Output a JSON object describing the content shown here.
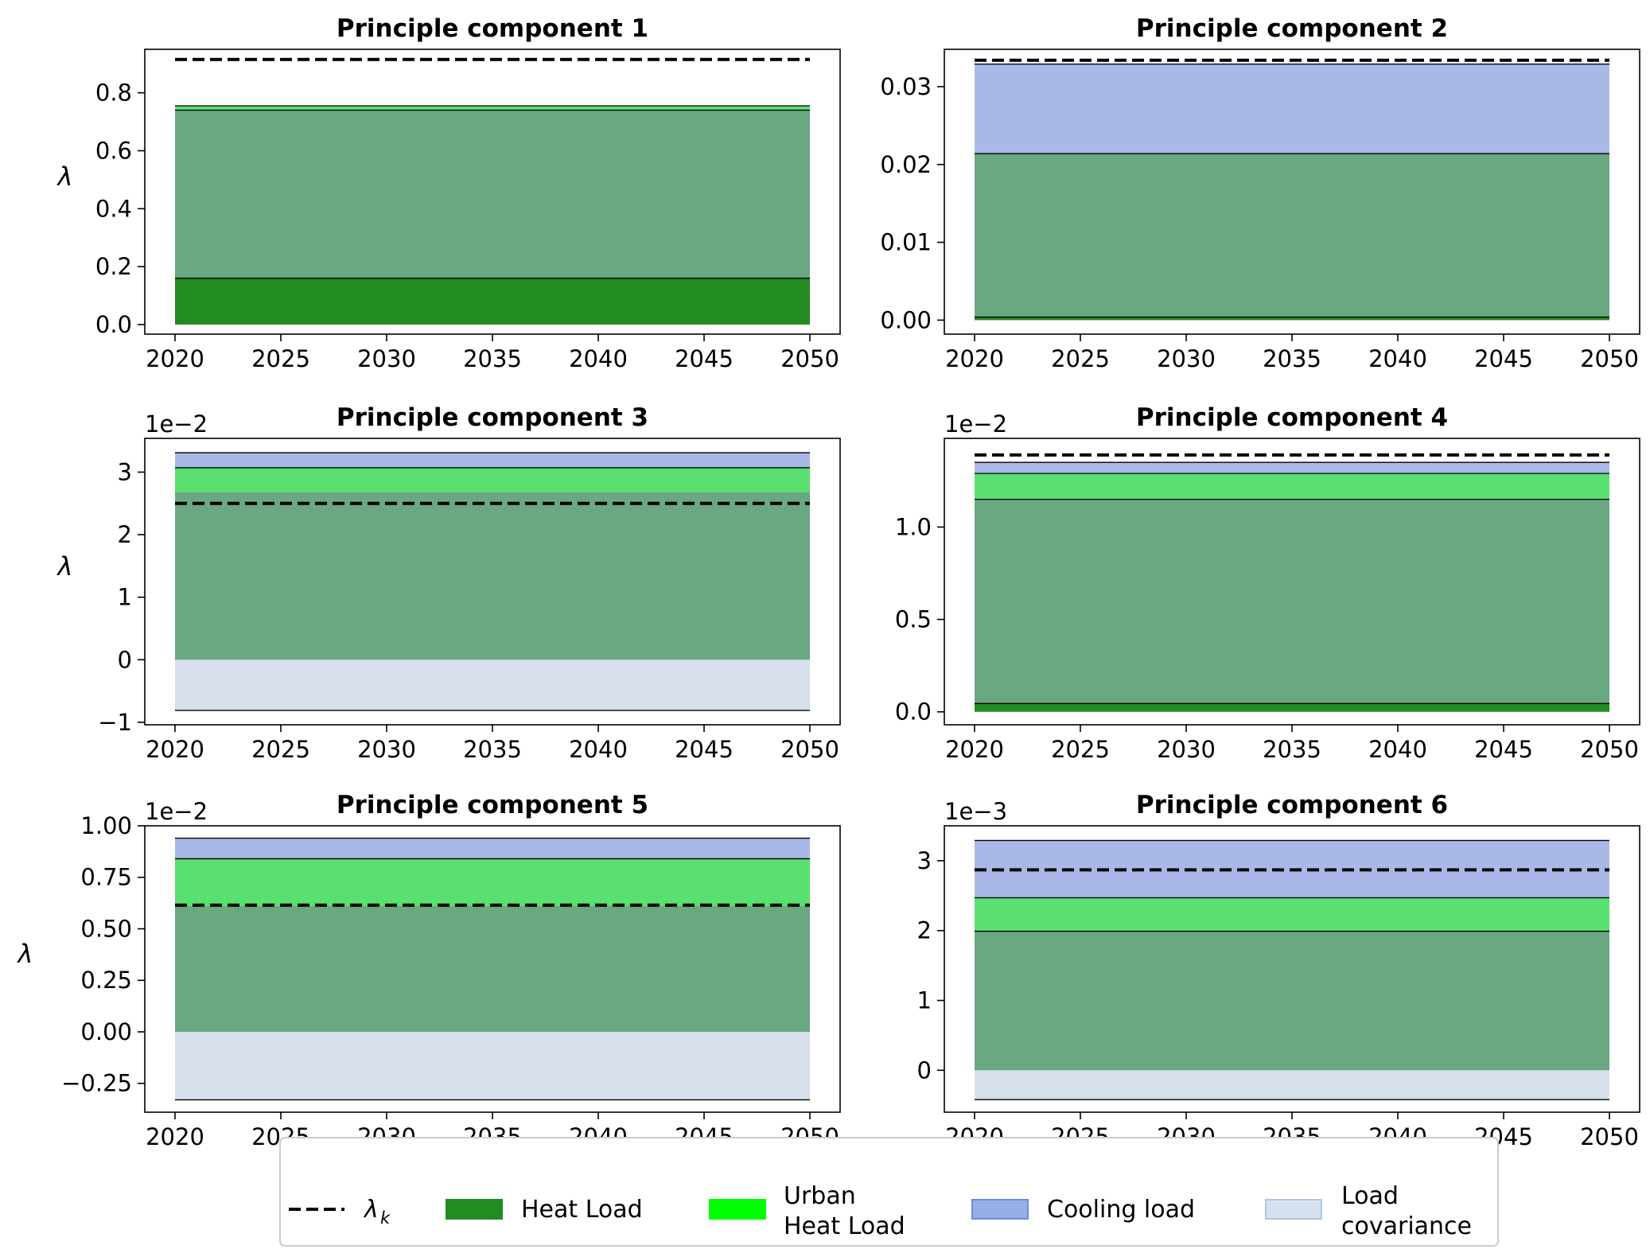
{
  "chart_data": [
    {
      "type": "area",
      "title": "Principle component 1",
      "ylabel": "λ",
      "x": [
        2020,
        2050
      ],
      "xlim": [
        2020,
        2050
      ],
      "xticks": [
        "2020",
        "2025",
        "2030",
        "2035",
        "2040",
        "2045",
        "2050"
      ],
      "ylim": [
        -0.033,
        0.95
      ],
      "yticks": [
        0.0,
        0.2,
        0.4,
        0.6,
        0.8
      ],
      "ytick_labels": [
        "0.0",
        "0.2",
        "0.4",
        "0.6",
        "0.8"
      ],
      "offset_text": "",
      "lambda_k": 0.915,
      "bands": [
        {
          "series": "Heat Load",
          "from": 0.0,
          "to": 0.16
        },
        {
          "series": "Heat Load overlap",
          "from": 0.16,
          "to": 0.74
        },
        {
          "series": "Urban Heat Load",
          "from": 0.74,
          "to": 0.755
        }
      ],
      "lines": [
        0.16,
        0.74,
        0.755
      ]
    },
    {
      "type": "area",
      "title": "Principle component 2",
      "ylabel": "",
      "x": [
        2020,
        2050
      ],
      "xlim": [
        2020,
        2050
      ],
      "xticks": [
        "2020",
        "2025",
        "2030",
        "2035",
        "2040",
        "2045",
        "2050"
      ],
      "ylim": [
        -0.0018,
        0.0348
      ],
      "yticks": [
        0.0,
        0.01,
        0.02,
        0.03
      ],
      "ytick_labels": [
        "0.00",
        "0.01",
        "0.02",
        "0.03"
      ],
      "offset_text": "",
      "lambda_k": 0.0334,
      "bands": [
        {
          "series": "Heat Load",
          "from": 0.0,
          "to": 0.0004
        },
        {
          "series": "Heat Load overlap",
          "from": 0.0004,
          "to": 0.0214
        },
        {
          "series": "Cooling load",
          "from": 0.0214,
          "to": 0.0329
        }
      ],
      "lines": [
        0.0004,
        0.0214,
        0.0329
      ]
    },
    {
      "type": "area",
      "title": "Principle component 3",
      "ylabel": "λ",
      "x": [
        2020,
        2050
      ],
      "xlim": [
        2020,
        2050
      ],
      "xticks": [
        "2020",
        "2025",
        "2030",
        "2035",
        "2040",
        "2045",
        "2050"
      ],
      "ylim": [
        -1.04,
        3.54
      ],
      "yticks": [
        -1,
        0,
        1,
        2,
        3
      ],
      "ytick_labels": [
        "−1",
        "0",
        "1",
        "2",
        "3"
      ],
      "offset_text": "1e−2",
      "lambda_k": 2.5,
      "bands": [
        {
          "series": "Load covariance",
          "from": -0.81,
          "to": 0.0
        },
        {
          "series": "Heat Load overlap",
          "from": 0.0,
          "to": 2.68
        },
        {
          "series": "Urban Heat Load",
          "from": 2.68,
          "to": 3.07
        },
        {
          "series": "Cooling load",
          "from": 3.07,
          "to": 3.31
        }
      ],
      "lines": [
        -0.81,
        3.07,
        3.31
      ]
    },
    {
      "type": "area",
      "title": "Principle component 4",
      "ylabel": "",
      "x": [
        2020,
        2050
      ],
      "xlim": [
        2020,
        2050
      ],
      "xticks": [
        "2020",
        "2025",
        "2030",
        "2035",
        "2040",
        "2045",
        "2050"
      ],
      "ylim": [
        -0.07,
        1.48
      ],
      "yticks": [
        0.0,
        0.5,
        1.0
      ],
      "ytick_labels": [
        "0.0",
        "0.5",
        "1.0"
      ],
      "offset_text": "1e−2",
      "lambda_k": 1.39,
      "bands": [
        {
          "series": "Heat Load",
          "from": 0.0,
          "to": 0.045
        },
        {
          "series": "Heat Load overlap",
          "from": 0.045,
          "to": 1.15
        },
        {
          "series": "Urban Heat Load",
          "from": 1.15,
          "to": 1.29
        },
        {
          "series": "Cooling load",
          "from": 1.29,
          "to": 1.35
        }
      ],
      "lines": [
        0.045,
        1.15,
        1.29,
        1.35
      ]
    },
    {
      "type": "area",
      "title": "Principle component 5",
      "ylabel": "λ",
      "x": [
        2020,
        2050
      ],
      "xlim": [
        2020,
        2050
      ],
      "xticks": [
        "2020",
        "2025",
        "2030",
        "2035",
        "2040",
        "2045",
        "2050"
      ],
      "ylim": [
        -0.39,
        1.0
      ],
      "yticks": [
        -0.25,
        0.0,
        0.25,
        0.5,
        0.75,
        1.0
      ],
      "ytick_labels": [
        "−0.25",
        "0.00",
        "0.25",
        "0.50",
        "0.75",
        "1.00"
      ],
      "offset_text": "1e−2",
      "lambda_k": 0.615,
      "bands": [
        {
          "series": "Load covariance",
          "from": -0.33,
          "to": 0.0
        },
        {
          "series": "Heat Load overlap",
          "from": 0.0,
          "to": 0.61
        },
        {
          "series": "Urban Heat Load",
          "from": 0.61,
          "to": 0.84
        },
        {
          "series": "Cooling load",
          "from": 0.84,
          "to": 0.94
        }
      ],
      "lines": [
        -0.33,
        0.84,
        0.94
      ]
    },
    {
      "type": "area",
      "title": "Principle component 6",
      "ylabel": "",
      "x": [
        2020,
        2050
      ],
      "xlim": [
        2020,
        2050
      ],
      "xticks": [
        "2020",
        "2025",
        "2030",
        "2035",
        "2040",
        "2045",
        "2050"
      ],
      "ylim": [
        -0.6,
        3.5
      ],
      "yticks": [
        0,
        1,
        2,
        3
      ],
      "ytick_labels": [
        "0",
        "1",
        "2",
        "3"
      ],
      "offset_text": "1e−3",
      "lambda_k": 2.87,
      "bands": [
        {
          "series": "Load covariance",
          "from": -0.42,
          "to": 0.0
        },
        {
          "series": "Heat Load overlap",
          "from": 0.0,
          "to": 1.99
        },
        {
          "series": "Urban Heat Load",
          "from": 1.99,
          "to": 2.47
        },
        {
          "series": "Cooling load",
          "from": 2.47,
          "to": 3.29
        }
      ],
      "lines": [
        -0.42,
        1.99,
        2.47,
        3.29
      ]
    }
  ],
  "legend": {
    "placement": "bottom-center",
    "items": [
      {
        "label": "λ",
        "sub": "k",
        "kind": "dashed-line",
        "color": "#000000"
      },
      {
        "label": "Heat Load",
        "kind": "patch",
        "color": "#228b22"
      },
      {
        "label": "Urban\nHeat Load",
        "kind": "patch",
        "color": "#00ff00"
      },
      {
        "label": "Cooling load",
        "kind": "patch",
        "color": "#6b8ce0"
      },
      {
        "label": "Load\ncovariance",
        "kind": "patch",
        "color": "#b0c4de"
      }
    ]
  },
  "colors": {
    "Heat Load": "#228b22",
    "Heat Load overlap": "#69a880",
    "Urban Heat Load": "#59e070",
    "Cooling load": "#a8b9e8",
    "Load covariance": "#d7e0ec",
    "lambda_k": "#000000"
  }
}
